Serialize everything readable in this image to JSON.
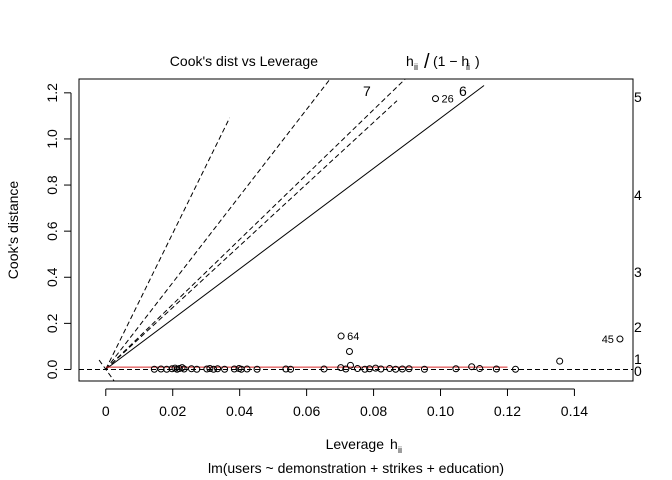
{
  "chart_data": {
    "type": "scatter",
    "title": "Cook's dist vs Leverage",
    "title_formula": {
      "h": "h",
      "sub": "ii",
      "one_minus": "(1 − h",
      "close": ")"
    },
    "xlabel": "Leverage",
    "xlabel_h": "h",
    "xlabel_sub": "ii",
    "ylabel": "Cook's distance",
    "subtitle": "lm(users ~ demonstration + strikes + education)",
    "xlim": [
      -0.008,
      0.1575
    ],
    "ylim": [
      -0.05,
      1.26
    ],
    "x_ticks": [
      0,
      0.02,
      0.04,
      0.06,
      0.08,
      0.1,
      0.12,
      0.14
    ],
    "x_tick_labels": [
      "0",
      "0.02",
      "0.04",
      "0.06",
      "0.08",
      "0.10",
      "0.12",
      "0.14"
    ],
    "y_ticks": [
      0,
      0.2,
      0.4,
      0.6,
      0.8,
      1.0,
      1.2
    ],
    "y_tick_labels": [
      "0.0",
      "0.2",
      "0.4",
      "0.6",
      "0.8",
      "1.0",
      "1.2"
    ],
    "contours": [
      {
        "ratio": 0,
        "label": "0",
        "style": "dashed",
        "show_line": false
      },
      {
        "ratio": 1,
        "label": "1",
        "style": "dashed",
        "show_line": false
      },
      {
        "ratio": 2,
        "label": "2",
        "style": "dashed",
        "show_line": true
      },
      {
        "ratio": 3,
        "label": "3",
        "style": "dashed",
        "show_line": false
      },
      {
        "ratio": 4,
        "label": "4",
        "style": "dashed",
        "show_line": true
      },
      {
        "ratio": 5,
        "label": "5",
        "style": "dashed",
        "show_line": false
      },
      {
        "ratio": 6,
        "label": "6",
        "style": "dashed",
        "show_line": false
      },
      {
        "ratio": 7,
        "label": "7",
        "style": "dashed",
        "show_line": false
      }
    ],
    "extra_lines": [
      {
        "slope": 14.08,
        "x_end": 0.1575,
        "style": "dashed"
      },
      {
        "slope": 18.8,
        "x_end": 0.083,
        "style": "dashed"
      },
      {
        "slope": 13.4,
        "x_end": 0.087,
        "style": "dashed"
      },
      {
        "slope": 10.9,
        "x_end": 0.113,
        "style": "solid"
      },
      {
        "slope": 29.5,
        "x_end": 0.037,
        "style": "dashed"
      },
      {
        "slope": -20,
        "x_end": 0.0025,
        "x_start": -0.002,
        "style": "dashed"
      }
    ],
    "points": [
      {
        "x": 0.0145,
        "y": 0.001
      },
      {
        "x": 0.0165,
        "y": 0.002
      },
      {
        "x": 0.0182,
        "y": 0.001
      },
      {
        "x": 0.0198,
        "y": 0.003
      },
      {
        "x": 0.0207,
        "y": 0.006
      },
      {
        "x": 0.0213,
        "y": 0.001
      },
      {
        "x": 0.022,
        "y": 0.004
      },
      {
        "x": 0.0228,
        "y": 0.008
      },
      {
        "x": 0.0234,
        "y": 0.002
      },
      {
        "x": 0.0256,
        "y": 0.003
      },
      {
        "x": 0.0272,
        "y": 0.001
      },
      {
        "x": 0.0302,
        "y": 0.002
      },
      {
        "x": 0.0311,
        "y": 0.004
      },
      {
        "x": 0.0322,
        "y": 0.001
      },
      {
        "x": 0.0334,
        "y": 0.003
      },
      {
        "x": 0.0355,
        "y": 0.001
      },
      {
        "x": 0.0384,
        "y": 0.002
      },
      {
        "x": 0.0398,
        "y": 0.004
      },
      {
        "x": 0.0405,
        "y": 0.001
      },
      {
        "x": 0.0422,
        "y": 0.002
      },
      {
        "x": 0.0452,
        "y": 0.001
      },
      {
        "x": 0.0538,
        "y": 0.002
      },
      {
        "x": 0.0552,
        "y": 0.001
      },
      {
        "x": 0.0652,
        "y": 0.002
      },
      {
        "x": 0.0702,
        "y": 0.008
      },
      {
        "x": 0.0717,
        "y": 0.002
      },
      {
        "x": 0.0731,
        "y": 0.018
      },
      {
        "x": 0.0752,
        "y": 0.004
      },
      {
        "x": 0.0774,
        "y": 0.001
      },
      {
        "x": 0.0788,
        "y": 0.003
      },
      {
        "x": 0.0806,
        "y": 0.006
      },
      {
        "x": 0.0822,
        "y": 0.002
      },
      {
        "x": 0.0848,
        "y": 0.004
      },
      {
        "x": 0.0866,
        "y": 0.001
      },
      {
        "x": 0.0886,
        "y": 0.002
      },
      {
        "x": 0.0906,
        "y": 0.003
      },
      {
        "x": 0.0952,
        "y": 0.001
      },
      {
        "x": 0.1046,
        "y": 0.003
      },
      {
        "x": 0.1093,
        "y": 0.012
      },
      {
        "x": 0.1117,
        "y": 0.004
      },
      {
        "x": 0.1167,
        "y": 0.002
      },
      {
        "x": 0.1224,
        "y": 0.001
      },
      {
        "x": 0.1356,
        "y": 0.036
      },
      {
        "x": 0.0728,
        "y": 0.078
      },
      {
        "x": 0.0703,
        "y": 0.145,
        "label": "64"
      },
      {
        "x": 0.0985,
        "y": 1.175,
        "label": "26"
      },
      {
        "x": 0.1536,
        "y": 0.132,
        "label": "45"
      }
    ],
    "smooth_line": {
      "x": [
        0.0,
        0.12
      ],
      "y": [
        0.01,
        0.01
      ]
    }
  }
}
